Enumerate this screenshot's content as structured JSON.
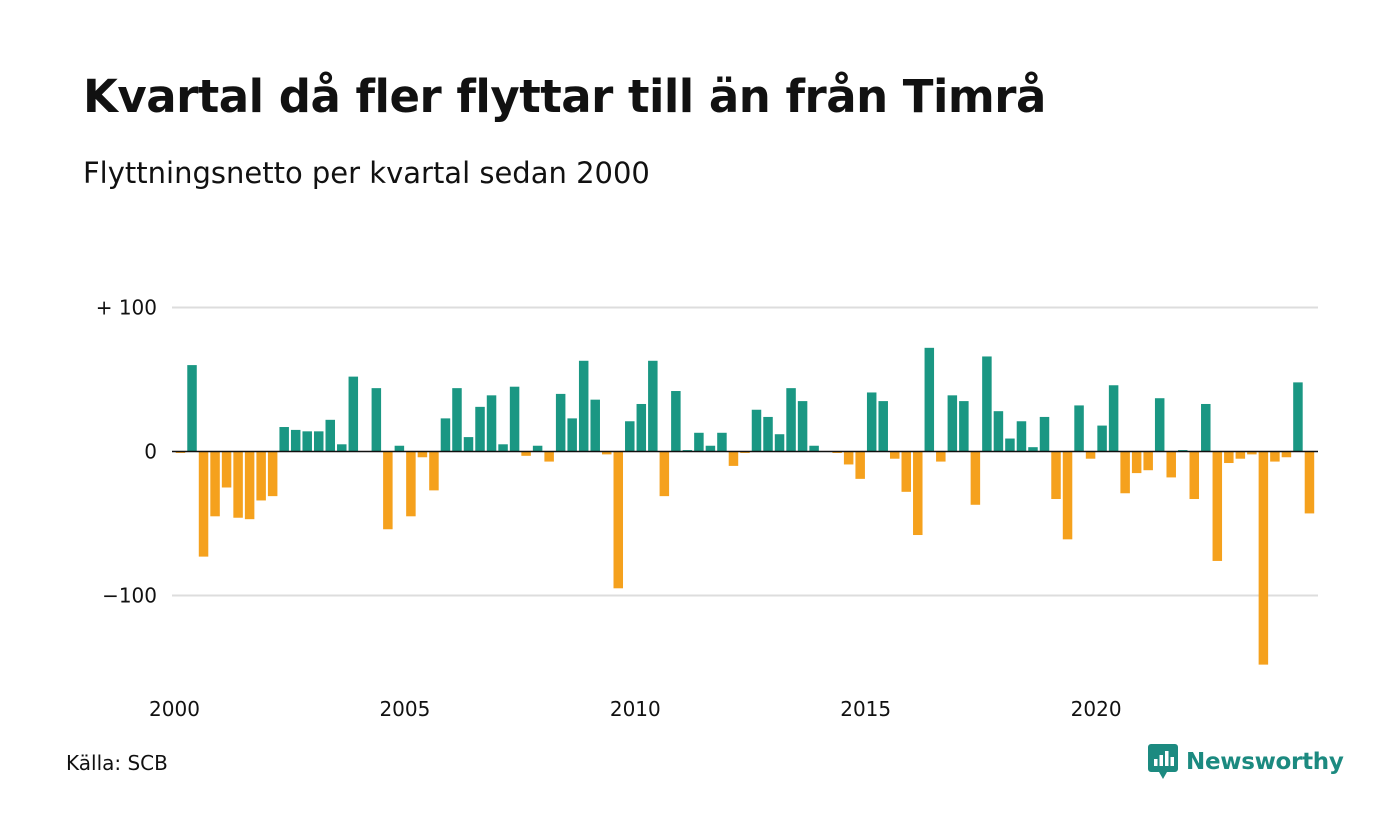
{
  "title": "Kvartal då fler flyttar till än från Timrå",
  "subtitle": "Flyttningsnetto per kvartal sedan 2000",
  "source": "Källa: SCB",
  "brand": "Newsworthy",
  "colors": {
    "positive": "#1a9783",
    "negative": "#f5a11d",
    "grid": "#dddddd",
    "brand": "#1c8a80"
  },
  "chart_data": {
    "type": "bar",
    "title": "Kvartal då fler flyttar till än från Timrå",
    "subtitle": "Flyttningsnetto per kvartal sedan 2000",
    "xlabel": "",
    "ylabel": "",
    "x_start": "2000 Q1",
    "frequency": "quarterly",
    "ylim": [
      -150,
      100
    ],
    "yticks": [
      100,
      0,
      -100
    ],
    "ytick_labels": [
      "+ 100",
      "0",
      "−100"
    ],
    "xtick_labels": [
      "2000",
      "2005",
      "2010",
      "2015",
      "2020"
    ],
    "grid": true,
    "values": [
      -1,
      60,
      -73,
      -45,
      -25,
      -46,
      -47,
      -34,
      -31,
      17,
      15,
      14,
      14,
      22,
      5,
      52,
      0,
      44,
      -54,
      4,
      -45,
      -4,
      -27,
      23,
      44,
      10,
      31,
      39,
      5,
      45,
      -3,
      4,
      -7,
      40,
      23,
      63,
      36,
      -2,
      -95,
      21,
      33,
      63,
      -31,
      42,
      1,
      13,
      4,
      13,
      -10,
      -1,
      29,
      24,
      12,
      44,
      35,
      4,
      0,
      -1,
      -9,
      -19,
      41,
      35,
      -5,
      -28,
      -58,
      72,
      -7,
      39,
      35,
      -37,
      66,
      28,
      9,
      21,
      3,
      24,
      -33,
      -61,
      32,
      -5,
      18,
      46,
      -29,
      -15,
      -13,
      37,
      -18,
      1,
      -33,
      33,
      -76,
      -8,
      -5,
      -2,
      -148,
      -7,
      -4,
      48,
      -43
    ]
  }
}
